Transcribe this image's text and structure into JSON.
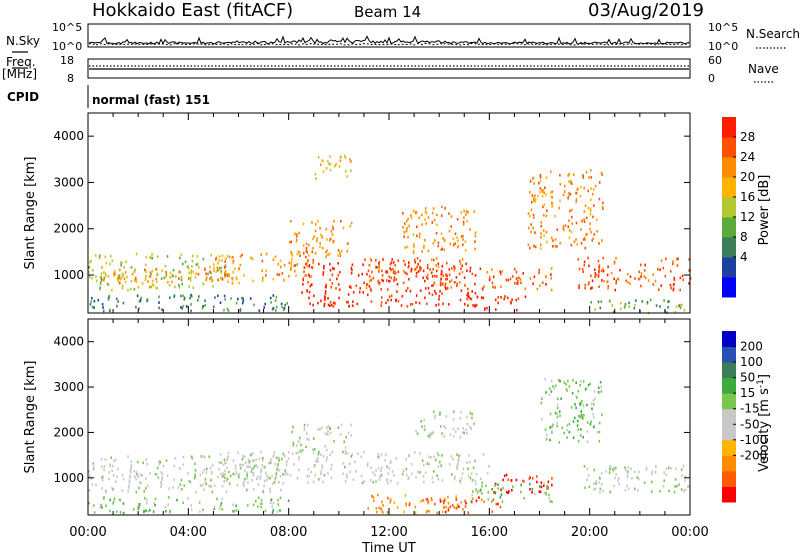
{
  "header": {
    "title": "Hokkaido East (fitACF)",
    "beam": "Beam 14",
    "date": "03/Aug/2019"
  },
  "top_panels": {
    "nsky_label": "N.Sky",
    "nsky_ticks": [
      "10^5",
      "10^0"
    ],
    "nsearch_label": "N.Search",
    "nsearch_ticks": [
      "10^5",
      "10^0"
    ],
    "freq_label": "Freq.",
    "freq_unit": "[MHz]",
    "freq_ticks": [
      "18",
      "8"
    ],
    "nave_label": "Nave",
    "nave_ticks": [
      "60",
      "0"
    ],
    "cpid_label": "CPID",
    "cpid_value": "normal (fast) 151"
  },
  "chart_data": [
    {
      "type": "heatmap",
      "name": "power",
      "ylabel": "Slant Range [km]",
      "yticks": [
        "4000",
        "3000",
        "2000",
        "1000"
      ],
      "ylim": [
        180,
        4500
      ],
      "x_ticks": [
        "00:00",
        "04:00",
        "08:00",
        "12:00",
        "16:00",
        "20:00",
        "00:00"
      ],
      "xlim_hours": [
        0,
        24
      ],
      "colorbar": {
        "label": "Power [dB]",
        "ticks": [
          "28",
          "24",
          "20",
          "16",
          "12",
          "8",
          "4"
        ],
        "colors": [
          "#0000ff",
          "#2040a0",
          "#3c7d5a",
          "#5aaa3c",
          "#b4c832",
          "#ffb400",
          "#ff8c00",
          "#ff5000",
          "#ff1e00"
        ]
      },
      "regions": [
        {
          "t0": 0.0,
          "t1": 5.5,
          "r0": 700,
          "r1": 1500,
          "level": 4
        },
        {
          "t0": 0.5,
          "t1": 6.0,
          "r0": 850,
          "r1": 1200,
          "level": 6
        },
        {
          "t0": 0.0,
          "t1": 8.0,
          "r0": 250,
          "r1": 600,
          "level": 2
        },
        {
          "t0": 5.0,
          "t1": 9.0,
          "r0": 900,
          "r1": 1500,
          "level": 6
        },
        {
          "t0": 8.0,
          "t1": 10.5,
          "r0": 1400,
          "r1": 2200,
          "level": 6
        },
        {
          "t0": 8.5,
          "t1": 15.5,
          "r0": 350,
          "r1": 1300,
          "level": 8
        },
        {
          "t0": 11.0,
          "t1": 15.0,
          "r0": 700,
          "r1": 1400,
          "level": 7
        },
        {
          "t0": 12.5,
          "t1": 15.5,
          "r0": 1500,
          "r1": 2500,
          "level": 6
        },
        {
          "t0": 15.0,
          "t1": 17.5,
          "r0": 250,
          "r1": 600,
          "level": 8
        },
        {
          "t0": 15.5,
          "t1": 18.5,
          "r0": 700,
          "r1": 1200,
          "level": 7
        },
        {
          "t0": 9.0,
          "t1": 10.5,
          "r0": 3100,
          "r1": 3600,
          "level": 5
        },
        {
          "t0": 17.5,
          "t1": 20.5,
          "r0": 1600,
          "r1": 3300,
          "level": 6
        },
        {
          "t0": 19.5,
          "t1": 24.0,
          "r0": 700,
          "r1": 1400,
          "level": 7
        },
        {
          "t0": 20.0,
          "t1": 24.0,
          "r0": 200,
          "r1": 500,
          "level": 3
        }
      ]
    },
    {
      "type": "heatmap",
      "name": "velocity",
      "ylabel": "Slant Range [km]",
      "yticks": [
        "4000",
        "3000",
        "2000",
        "1000"
      ],
      "ylim": [
        180,
        4500
      ],
      "x_ticks": [
        "00:00",
        "04:00",
        "08:00",
        "12:00",
        "16:00",
        "20:00",
        "00:00"
      ],
      "xlim_hours": [
        0,
        24
      ],
      "xlabel": "Time UT",
      "colorbar": {
        "label": "Velocity [m s",
        "label_sup": "-1",
        "label_end": "]",
        "ticks": [
          "200",
          "100",
          "50",
          "15",
          "-15",
          "-50",
          "-100",
          "-200"
        ],
        "colors": [
          "#ff0000",
          "#ff5a00",
          "#ff8c00",
          "#ffb400",
          "#c8c8c8",
          "#c8c8c8",
          "#78c850",
          "#3caa3c",
          "#3c7d5a",
          "#2850b4",
          "#0000c8"
        ]
      },
      "regions": [
        {
          "t0": 0.0,
          "t1": 8.0,
          "r0": 700,
          "r1": 1500,
          "level": 5
        },
        {
          "t0": 5.0,
          "t1": 16.0,
          "r0": 900,
          "r1": 1600,
          "level": 5
        },
        {
          "t0": 8.0,
          "t1": 10.5,
          "r0": 1500,
          "r1": 2200,
          "level": 5
        },
        {
          "t0": 13.0,
          "t1": 15.5,
          "r0": 1900,
          "r1": 2500,
          "level": 5
        },
        {
          "t0": 0.0,
          "t1": 8.0,
          "r0": 250,
          "r1": 600,
          "level": 6
        },
        {
          "t0": 11.0,
          "t1": 15.0,
          "r0": 250,
          "r1": 650,
          "level": 2
        },
        {
          "t0": 14.0,
          "t1": 16.5,
          "r0": 250,
          "r1": 600,
          "level": 1
        },
        {
          "t0": 16.0,
          "t1": 18.5,
          "r0": 700,
          "r1": 1100,
          "level": 0
        },
        {
          "t0": 15.0,
          "t1": 18.5,
          "r0": 500,
          "r1": 900,
          "level": 6
        },
        {
          "t0": 18.0,
          "t1": 20.5,
          "r0": 1800,
          "r1": 3200,
          "level": 6
        },
        {
          "t0": 19.5,
          "t1": 24.0,
          "r0": 700,
          "r1": 1300,
          "level": 5
        }
      ]
    }
  ]
}
